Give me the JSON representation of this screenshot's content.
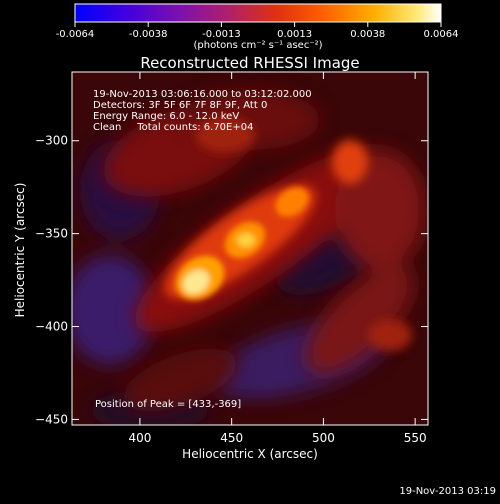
{
  "colorbar": {
    "ticks": [
      "-0.0064",
      "-0.0038",
      "-0.0013",
      "0.0013",
      "0.0038",
      "0.0064"
    ],
    "unit_label": "(photons cm⁻² s⁻¹ asec⁻²)",
    "colors": [
      "#0000ff",
      "#5a00d0",
      "#9a1a8a",
      "#d62a3a",
      "#ff5a00",
      "#ffa000",
      "#ffe040",
      "#ffffff"
    ]
  },
  "chart_data": {
    "type": "heatmap",
    "title": "Reconstructed RHESSI Image",
    "xlabel": "Heliocentric X (arcsec)",
    "ylabel": "Heliocentric Y (arcsec)",
    "xlim": [
      363,
      557
    ],
    "ylim": [
      -453,
      -263
    ],
    "x_ticks": [
      400,
      450,
      500,
      550
    ],
    "y_ticks": [
      -300,
      -350,
      -400,
      -450
    ],
    "x_tick_labels": [
      "400",
      "450",
      "500",
      "550"
    ],
    "y_tick_labels": [
      "−300",
      "−350",
      "−400",
      "−450"
    ],
    "annotations": [
      "19-Nov-2013 03:06:16.000 to 03:12:02.000",
      "Detectors: 3F 5F 6F 7F 8F 9F, Att 0",
      "Energy Range: 6.0 - 12.0 keV",
      "Clean     Total counts: 6.70E+04"
    ],
    "peak_label": "Position of Peak = [433,-369]",
    "peak": [
      433,
      -369
    ]
  },
  "footer": {
    "timestamp": "19-Nov-2013 03:19"
  }
}
